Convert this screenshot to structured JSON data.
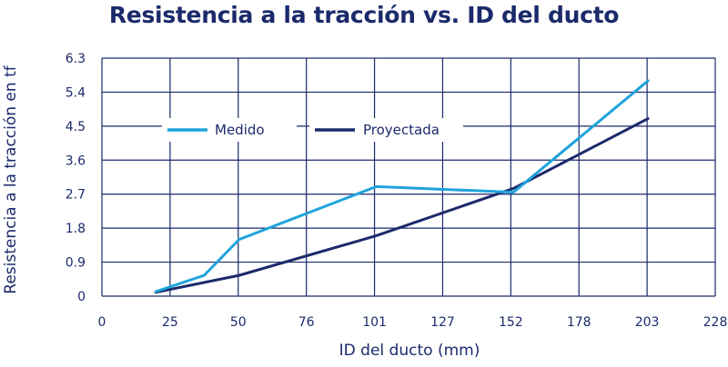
{
  "chart_data": {
    "type": "line",
    "title": "Resistencia a la tracción vs. ID del ducto",
    "xlabel": "ID del ducto (mm)",
    "ylabel": "Resistencia a la tracción en tf",
    "xlim": [
      0,
      228
    ],
    "ylim": [
      0,
      6.3
    ],
    "x_ticks": [
      "0",
      "25",
      "50",
      "76",
      "101",
      "127",
      "152",
      "178",
      "203",
      "228"
    ],
    "y_ticks": [
      "0",
      "0.9",
      "1.8",
      "2.7",
      "3.6",
      "4.5",
      "5.4",
      "6.3"
    ],
    "grid": true,
    "legend_position": "top-left, inside plot",
    "series": [
      {
        "name": "Medido",
        "color": "#1fa3dc",
        "x": [
          20,
          38,
          51,
          102,
          153,
          203
        ],
        "y": [
          0.12,
          0.55,
          1.5,
          2.9,
          2.75,
          5.7
        ]
      },
      {
        "name": "Proyectada",
        "color": "#1b2a6b",
        "x": [
          20,
          51,
          102,
          153,
          203
        ],
        "y": [
          0.1,
          0.55,
          1.6,
          2.85,
          4.7
        ]
      }
    ]
  }
}
